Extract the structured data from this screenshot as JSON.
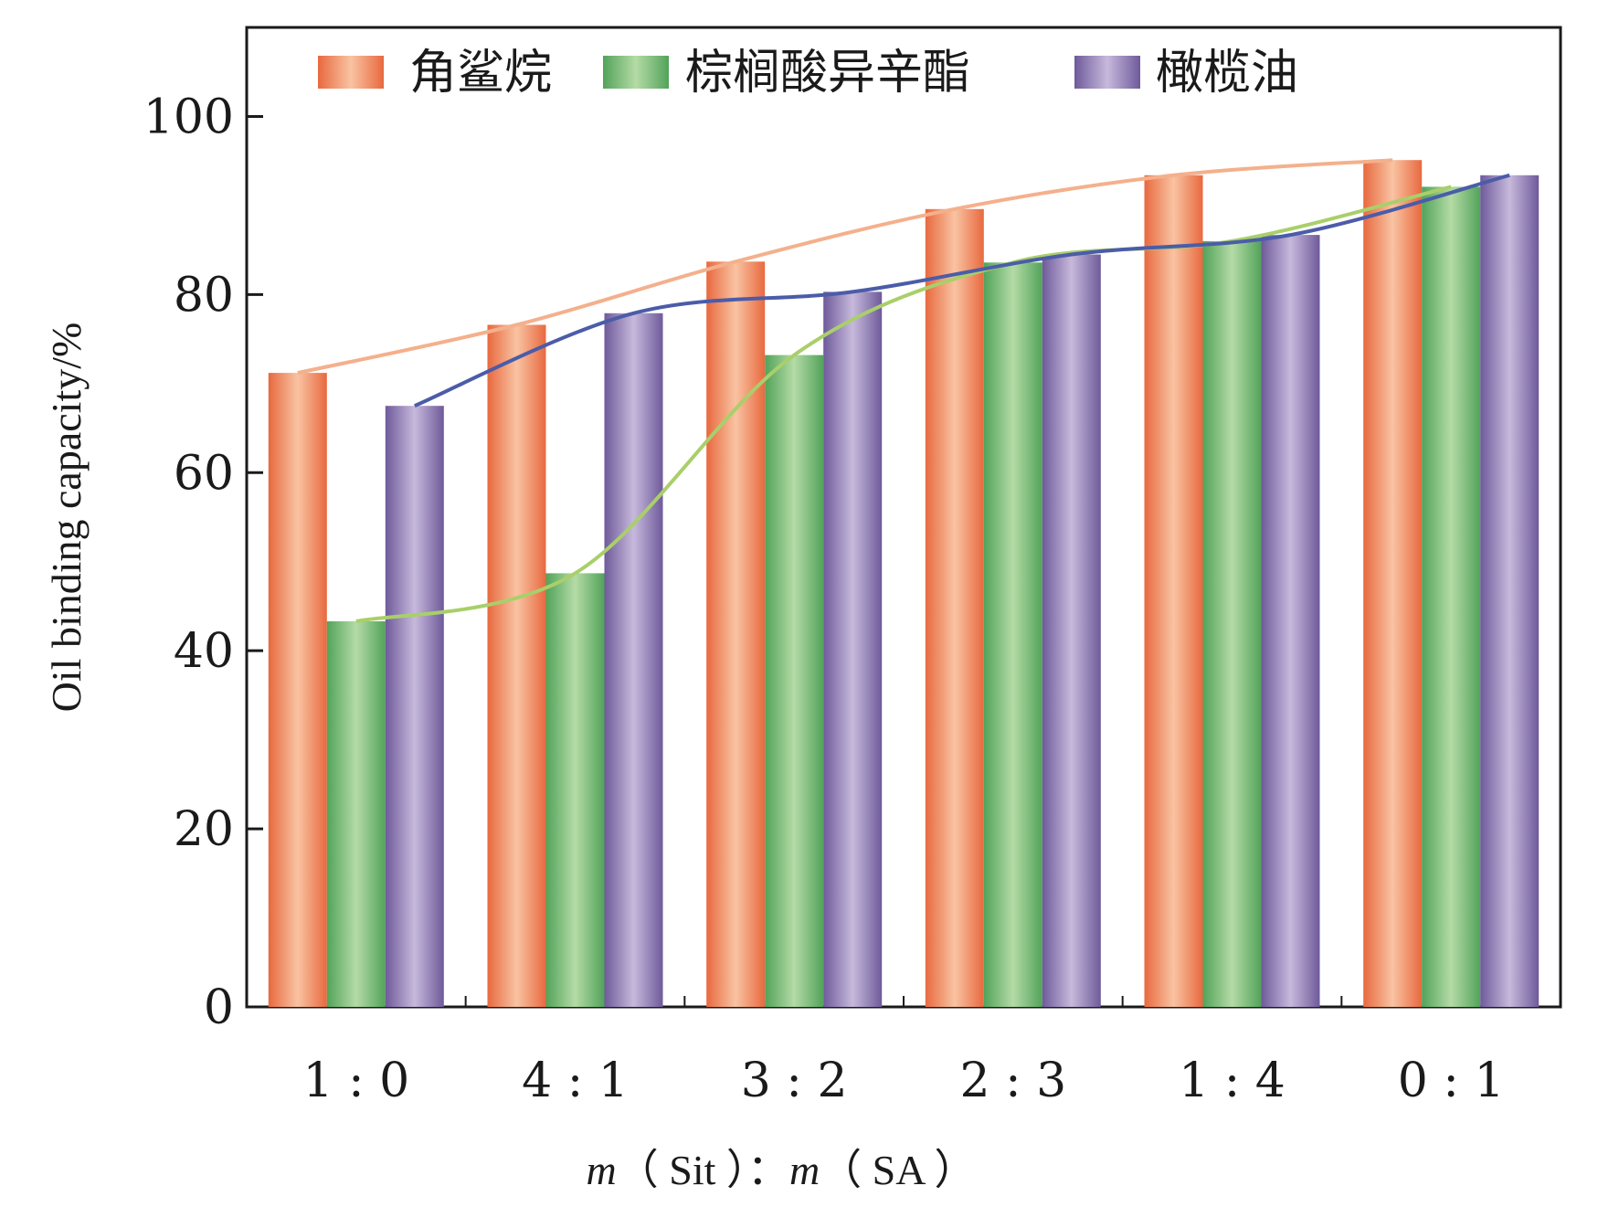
{
  "chart_data": {
    "type": "bar",
    "title": "",
    "xlabel": "m（Sit）：m（SA）",
    "xlabel_parts": {
      "var1": "m",
      "sub1": "（ Sit ）：",
      "var2": "m",
      "sub2": "（ SA ）"
    },
    "ylabel": "Oil binding capacity/%",
    "ylim": [
      0,
      110
    ],
    "yticks": [
      0,
      20,
      40,
      60,
      80,
      100
    ],
    "ytick_labels": [
      "0",
      "20",
      "40",
      "60",
      "80",
      "100"
    ],
    "categories": [
      "1：0",
      "4：1",
      "3：2",
      "2：3",
      "1：4",
      "0：1"
    ],
    "category_labels": [
      "1 : 0",
      "4 : 1",
      "3 : 2",
      "2 : 3",
      "1 : 4",
      "0 : 1"
    ],
    "legend_position": "top",
    "grid": false,
    "trend_lines": true,
    "series": [
      {
        "name": "角鲨烷",
        "values": [
          71.2,
          76.6,
          83.7,
          89.6,
          93.4,
          95.1
        ],
        "color_dark": "#e8693f",
        "color_light": "#f9c3a2",
        "trend_color": "#f4b08c"
      },
      {
        "name": "棕榈酸异辛酯",
        "values": [
          43.3,
          48.7,
          73.2,
          83.6,
          86.0,
          92.1
        ],
        "color_dark": "#52a35a",
        "color_light": "#b4dba6",
        "trend_color": "#a9cf6a"
      },
      {
        "name": "橄榄油",
        "values": [
          67.5,
          77.9,
          80.3,
          84.5,
          86.7,
          93.4
        ],
        "color_dark": "#6e5a9a",
        "color_light": "#c7b9dc",
        "trend_color": "#4b5ca8"
      }
    ]
  }
}
